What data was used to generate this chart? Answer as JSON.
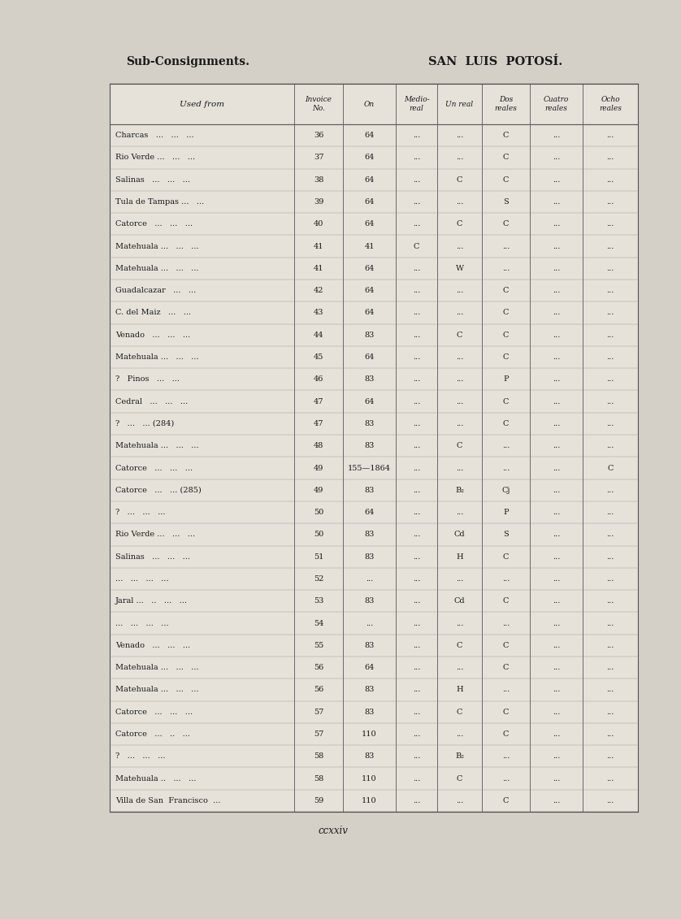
{
  "left_title": "Sub-Consignments.",
  "right_title": "SAN  LUIS  POTOSI.",
  "right_title_accent": "SAN  LUIS  POTOSÍ.",
  "page_number": "ccxxiv",
  "background_color": "#d4d0c8",
  "table_bg": "#e6e2da",
  "columns": [
    "Used from",
    "Invoice\nNo.",
    "On",
    "Medio-\nreal",
    "Un real",
    "Dos\nreales",
    "Cuatro\nreales",
    "Ocho\nreales"
  ],
  "rows": [
    [
      "Charcas   ...   ...   ...",
      "36",
      "64",
      "...",
      "...",
      "C",
      "...",
      "..."
    ],
    [
      "Rio Verde ...   ...   ...",
      "37",
      "64",
      "...",
      "...",
      "C",
      "...",
      "..."
    ],
    [
      "Salinas   ...   ...   ...",
      "38",
      "64",
      "...",
      "C",
      "C",
      "...",
      "..."
    ],
    [
      "Tula de Tampas ...   ...",
      "39",
      "64",
      "...",
      "...",
      "S",
      "...",
      "..."
    ],
    [
      "Catorce   ...   ...   ...",
      "40",
      "64",
      "...",
      "C",
      "C",
      "...",
      "..."
    ],
    [
      "Matehuala ...   ...   ...",
      "41",
      "41",
      "C",
      "...",
      "...",
      "...",
      "..."
    ],
    [
      "Matehuala ...   ...   ...",
      "41",
      "64",
      "...",
      "W",
      "...",
      "...",
      "..."
    ],
    [
      "Guadalcazar   ...   ...",
      "42",
      "64",
      "...",
      "...",
      "C",
      "...",
      "..."
    ],
    [
      "C. del Maiz   ...   ...",
      "43",
      "64",
      "...",
      "...",
      "C",
      "...",
      "..."
    ],
    [
      "Venado   ...   ...   ...",
      "44",
      "83",
      "...",
      "C",
      "C",
      "...",
      "..."
    ],
    [
      "Matehuala ...   ...   ...",
      "45",
      "64",
      "...",
      "...",
      "C",
      "...",
      "..."
    ],
    [
      "?   Pinos   ...   ...",
      "46",
      "83",
      "...",
      "...",
      "P",
      "...",
      "..."
    ],
    [
      "Cedral   ...   ...   ...",
      "47",
      "64",
      "...",
      "...",
      "C",
      "...",
      "..."
    ],
    [
      "?   ...   ... (284)",
      "47",
      "83",
      "...",
      "...",
      "C",
      "...",
      "..."
    ],
    [
      "Matehuala ...   ...   ...",
      "48",
      "83",
      "...",
      "C",
      "...",
      "...",
      "..."
    ],
    [
      "Catorce   ...   ...   ...",
      "49",
      "155—1864",
      "...",
      "...",
      "...",
      "...",
      "C"
    ],
    [
      "Catorce   ...   ... (285)",
      "49",
      "83",
      "...",
      "B₂",
      "Cj",
      "...",
      "..."
    ],
    [
      "?   ...   ...   ...",
      "50",
      "64",
      "...",
      "...",
      "P",
      "...",
      "..."
    ],
    [
      "Rio Verde ...   ...   ...",
      "50",
      "83",
      "...",
      "Cd",
      "S",
      "...",
      "..."
    ],
    [
      "Salinas   ...   ...   ...",
      "51",
      "83",
      "...",
      "H",
      "C",
      "...",
      "..."
    ],
    [
      "...   ...   ...   ...",
      "52",
      "...",
      "...",
      "...",
      "...",
      "...",
      "..."
    ],
    [
      "Jaral ...   ..   ...   ...",
      "53",
      "83",
      "...",
      "Cd",
      "C",
      "...",
      "..."
    ],
    [
      "...   ...   ...   ...",
      "54",
      "...",
      "...",
      "...",
      "...",
      "...",
      "..."
    ],
    [
      "Venado   ...   ...   ...",
      "55",
      "83",
      "...",
      "C",
      "C",
      "...",
      "..."
    ],
    [
      "Matehuala ...   ...   ...",
      "56",
      "64",
      "...",
      "...",
      "C",
      "...",
      "..."
    ],
    [
      "Matehuala ...   ...   ...",
      "56",
      "83",
      "...",
      "H",
      "...",
      "...",
      "..."
    ],
    [
      "Catorce   ...   ...   ...",
      "57",
      "83",
      "...",
      "C",
      "C",
      "...",
      "..."
    ],
    [
      "Catorce   ...   ..   ...",
      "57",
      "110",
      "...",
      "...",
      "C",
      "...",
      "..."
    ],
    [
      "?   ...   ...   ...",
      "58",
      "83",
      "...",
      "B₂",
      "...",
      "...",
      "..."
    ],
    [
      "Matehuala ..   ...   ...",
      "58",
      "110",
      "...",
      "C",
      "...",
      "...",
      "..."
    ],
    [
      "Villa de San  Francisco  ...",
      "59",
      "110",
      "...",
      "...",
      "C",
      "...",
      "..."
    ]
  ]
}
